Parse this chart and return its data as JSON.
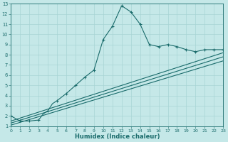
{
  "xlabel": "Humidex (Indice chaleur)",
  "bg_color": "#c5e8e8",
  "line_color": "#1a6b6b",
  "grid_color": "#a8d4d4",
  "xlim": [
    0,
    23
  ],
  "ylim": [
    1,
    13
  ],
  "xticks": [
    0,
    1,
    2,
    3,
    4,
    5,
    6,
    7,
    8,
    9,
    10,
    11,
    12,
    13,
    14,
    15,
    16,
    17,
    18,
    19,
    20,
    21,
    22,
    23
  ],
  "yticks": [
    1,
    2,
    3,
    4,
    5,
    6,
    7,
    8,
    9,
    10,
    11,
    12,
    13
  ],
  "curve_x": [
    0,
    1,
    2,
    3,
    3.5,
    4,
    4.5,
    5,
    6,
    7,
    8,
    9,
    10,
    11,
    12,
    13,
    14,
    15,
    16,
    17,
    18,
    19,
    20,
    21,
    22,
    23
  ],
  "curve_y": [
    2.0,
    1.5,
    1.5,
    1.6,
    2.2,
    2.5,
    3.2,
    3.5,
    4.2,
    5.0,
    5.8,
    6.5,
    9.5,
    10.8,
    12.8,
    12.2,
    11.0,
    9.0,
    8.8,
    9.0,
    8.8,
    8.5,
    8.3,
    8.5,
    8.5,
    8.5
  ],
  "marker_x": [
    0,
    1,
    2,
    3,
    4,
    5,
    6,
    7,
    8,
    9,
    10,
    11,
    12,
    13,
    14,
    15,
    16,
    17,
    18,
    19,
    20,
    21,
    22,
    23
  ],
  "marker_y": [
    2.0,
    1.5,
    1.5,
    1.6,
    2.5,
    3.5,
    4.2,
    5.0,
    5.8,
    6.5,
    9.5,
    10.8,
    12.8,
    12.2,
    11.0,
    9.0,
    8.8,
    9.0,
    8.8,
    8.5,
    8.3,
    8.5,
    8.5,
    8.5
  ],
  "line2_x": [
    0,
    23
  ],
  "line2_y": [
    1.5,
    8.2
  ],
  "line3_x": [
    0,
    23
  ],
  "line3_y": [
    1.3,
    7.8
  ],
  "line4_x": [
    0,
    23
  ],
  "line4_y": [
    1.1,
    7.4
  ]
}
